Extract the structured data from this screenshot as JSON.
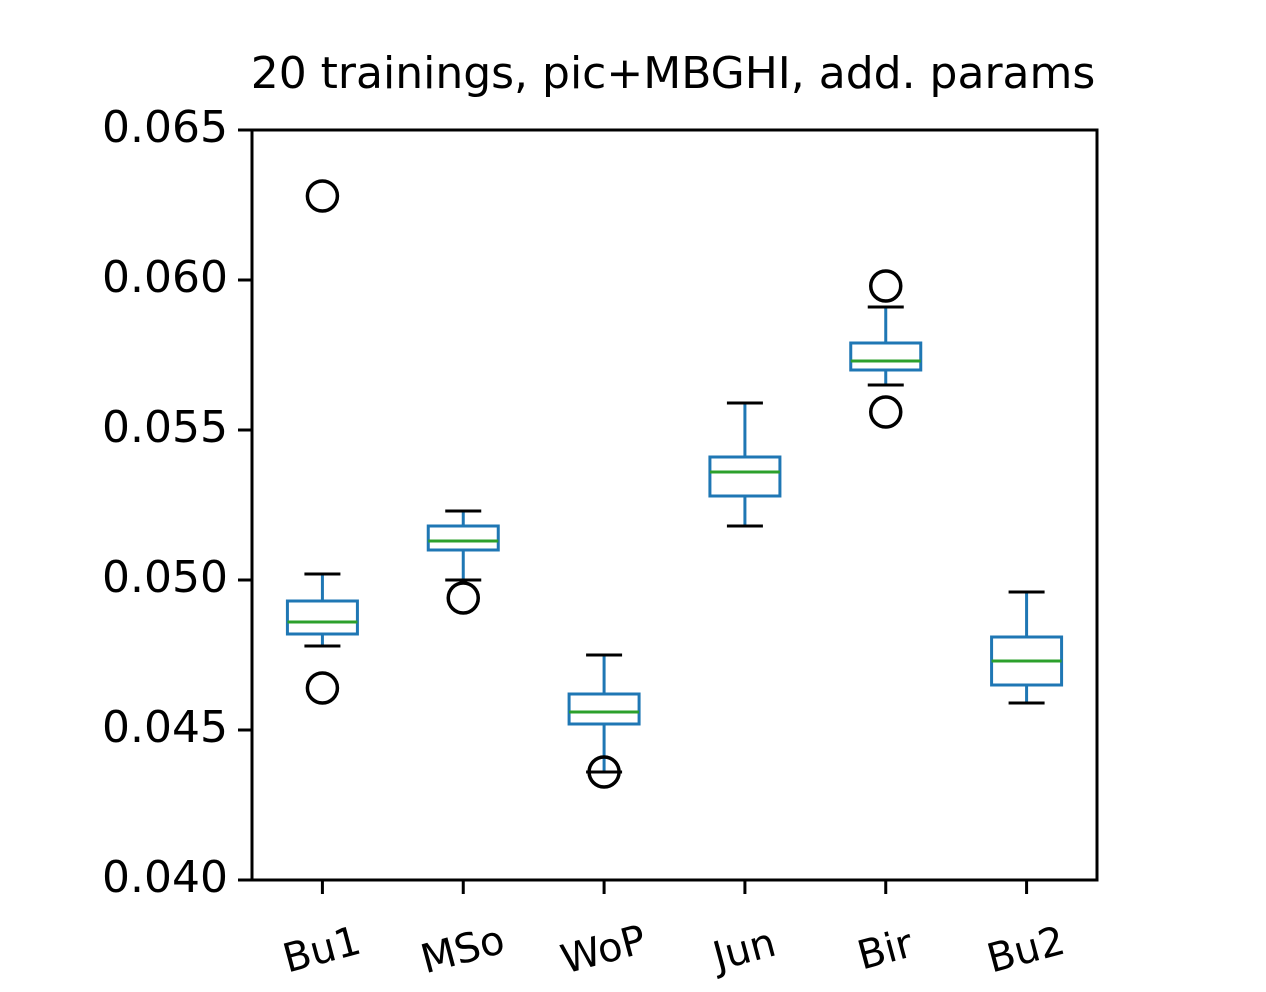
{
  "chart_data": {
    "type": "box",
    "title": "20 trainings, pic+MBGHI, add. params",
    "categories": [
      "Bu1",
      "MSo",
      "WoP",
      "Jun",
      "Bir",
      "Bu2"
    ],
    "boxes": [
      {
        "whislo": 0.0478,
        "q1": 0.0482,
        "med": 0.0486,
        "q3": 0.0493,
        "whishi": 0.0502,
        "fliers": [
          0.0628,
          0.0464
        ]
      },
      {
        "whislo": 0.05,
        "q1": 0.051,
        "med": 0.0513,
        "q3": 0.0518,
        "whishi": 0.0523,
        "fliers": [
          0.0494
        ]
      },
      {
        "whislo": 0.0436,
        "q1": 0.0452,
        "med": 0.0456,
        "q3": 0.0462,
        "whishi": 0.0475,
        "fliers": [
          0.0436
        ]
      },
      {
        "whislo": 0.0518,
        "q1": 0.0528,
        "med": 0.0536,
        "q3": 0.0541,
        "whishi": 0.0559,
        "fliers": []
      },
      {
        "whislo": 0.0565,
        "q1": 0.057,
        "med": 0.0573,
        "q3": 0.0579,
        "whishi": 0.0591,
        "fliers": [
          0.0598,
          0.0556
        ]
      },
      {
        "whislo": 0.0459,
        "q1": 0.0465,
        "med": 0.0473,
        "q3": 0.0481,
        "whishi": 0.0496,
        "fliers": []
      }
    ],
    "box_color": "#1f77b4",
    "median_color": "#2ca02c",
    "ylim": [
      0.04,
      0.065
    ],
    "yticks": [
      {
        "value": 0.04,
        "label": "0.040"
      },
      0.045,
      {
        "value": 0.05,
        "label": "0.050"
      },
      0.055,
      {
        "value": 0.06,
        "label": "0.060"
      },
      0.065
    ]
  }
}
